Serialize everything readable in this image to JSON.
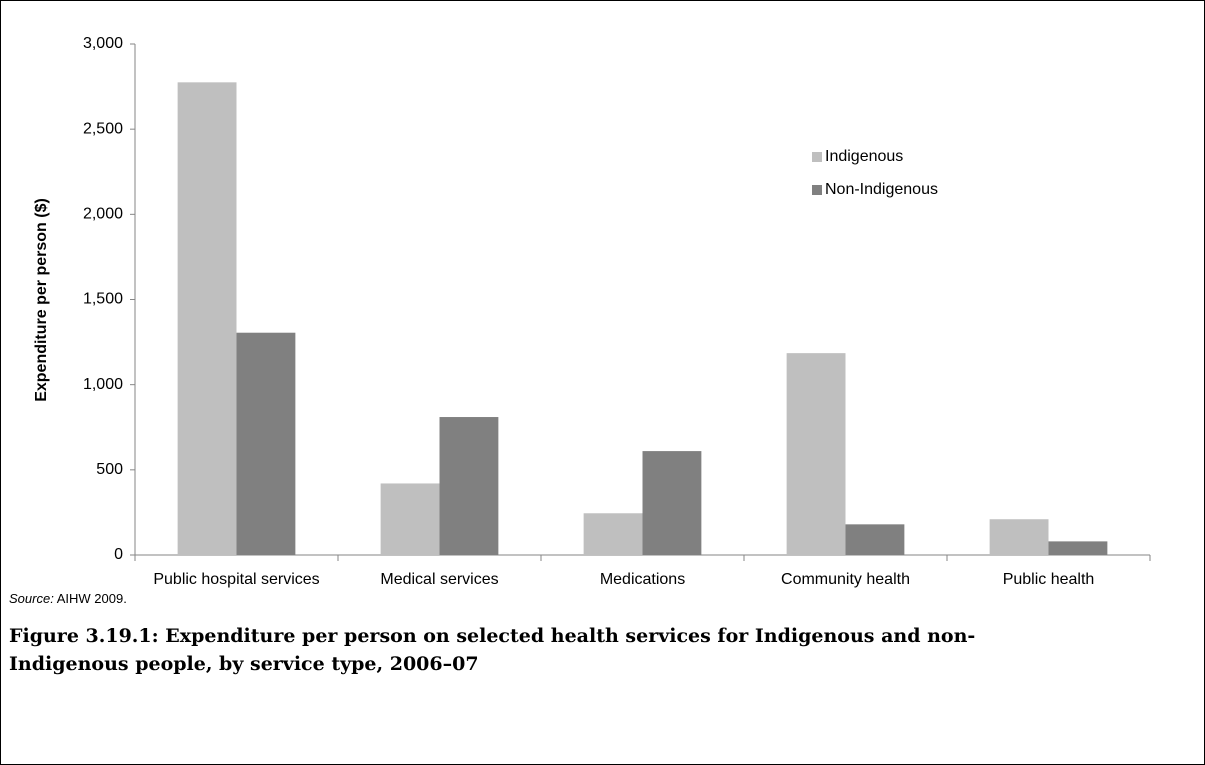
{
  "chart_data": {
    "type": "bar",
    "y_label": "Expenditure per person ($)",
    "categories": [
      "Public hospital services",
      "Medical services",
      "Medications",
      "Community health",
      "Public health"
    ],
    "series": [
      {
        "name": "Indigenous",
        "color": "#bfbfbf",
        "values": [
          2775,
          420,
          245,
          1185,
          210
        ]
      },
      {
        "name": "Non-Indigenous",
        "color": "#808080",
        "values": [
          1305,
          810,
          610,
          180,
          80
        ]
      }
    ],
    "ylim": [
      0,
      3000
    ],
    "yticks": [
      0,
      500,
      {
        "value": 1000,
        "label": "1,000"
      },
      {
        "value": 1500,
        "label": "1,500"
      },
      {
        "value": 2000,
        "label": "2,000"
      },
      {
        "value": 2500,
        "label": "2,500"
      },
      {
        "value": 3000,
        "label": "3,000"
      }
    ],
    "grid": false,
    "legend": "upper-right",
    "source_label": "Source:",
    "source": "AIHW 2009.",
    "caption": "Figure 3.19.1: Expenditure per person on selected health services for Indigenous and non-Indigenous people, by service type, 2006–07"
  }
}
